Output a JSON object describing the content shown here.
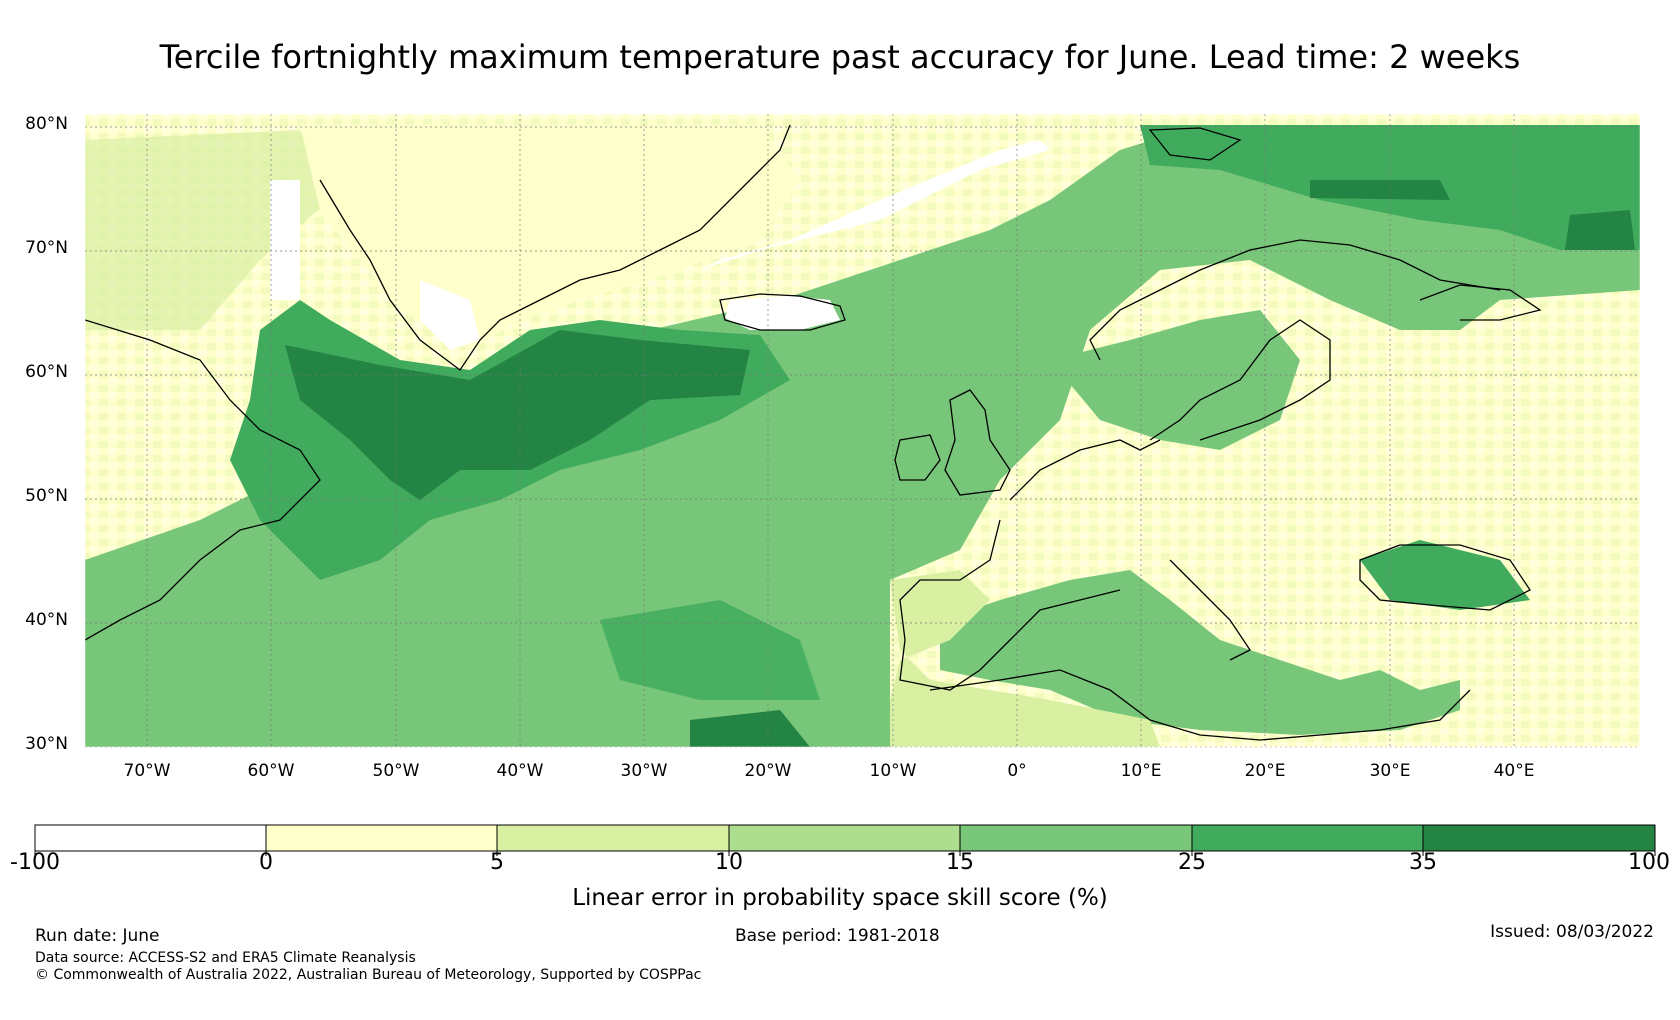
{
  "title": "Tercile fortnightly maximum temperature past accuracy for June. Lead time: 2 weeks",
  "map": {
    "lat_range": [
      30,
      81
    ],
    "lon_range": [
      -75,
      50
    ],
    "lat_labels": [
      "30°N",
      "40°N",
      "50°N",
      "60°N",
      "70°N",
      "80°N"
    ],
    "lon_labels": [
      "70°W",
      "60°W",
      "50°W",
      "40°W",
      "30°W",
      "20°W",
      "10°W",
      "0°",
      "10°E",
      "20°E",
      "30°E",
      "40°E"
    ],
    "gridlines": true
  },
  "colorbar": {
    "ticks": [
      "-100",
      "0",
      "5",
      "10",
      "15",
      "25",
      "35",
      "100"
    ],
    "colors": [
      "#ffffff",
      "#ffffcc",
      "#d9f0a3",
      "#addd8e",
      "#78c679",
      "#41ab5d",
      "#238443"
    ],
    "label": "Linear error in probability space skill score (%)"
  },
  "footer": {
    "run_date": "Run date: June",
    "base_period": "Base period: 1981-2018",
    "issued": "Issued: 08/03/2022",
    "data_source": "Data source: ACCESS-S2 and ERA5 Climate Reanalysis",
    "copyright": "© Commonwealth of Australia 2022, Australian Bureau of Meteorology, Supported by COSPPac"
  }
}
